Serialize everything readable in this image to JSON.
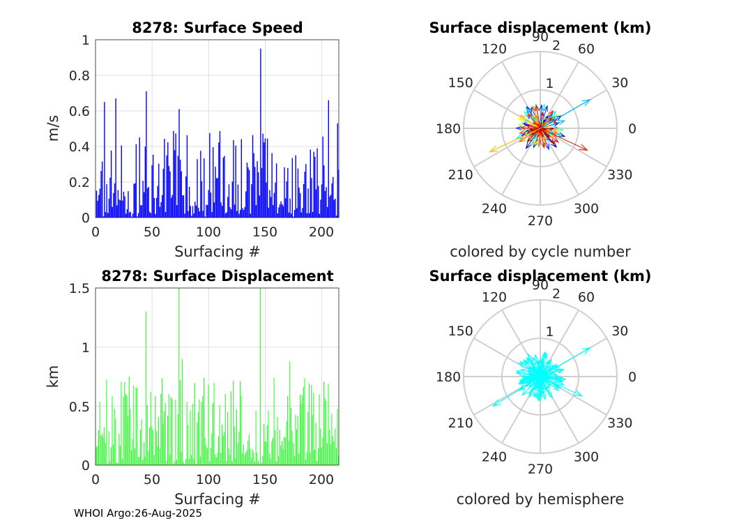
{
  "chart_data": [
    {
      "type": "bar",
      "title": "8278: Surface Speed",
      "xlabel": "Surfacing #",
      "ylabel": "m/s",
      "xlim": [
        0,
        215
      ],
      "ylim": [
        0,
        1
      ],
      "xticks": [
        "0",
        "50",
        "100",
        "150",
        "200"
      ],
      "yticks": [
        "0",
        "0.2",
        "0.4",
        "0.6",
        "0.8",
        "1"
      ],
      "color": "#0000ff",
      "peaks": [
        {
          "x": 8,
          "value": 0.65
        },
        {
          "x": 18,
          "value": 0.67
        },
        {
          "x": 45,
          "value": 0.71
        },
        {
          "x": 74,
          "value": 0.61
        },
        {
          "x": 146,
          "value": 0.95
        },
        {
          "x": 206,
          "value": 0.66
        },
        {
          "x": 214,
          "value": 0.53
        }
      ]
    },
    {
      "type": "bar",
      "title": "8278: Surface Displacement",
      "xlabel": "Surfacing #",
      "ylabel": "km",
      "xlim": [
        0,
        215
      ],
      "ylim": [
        0,
        1.5
      ],
      "xticks": [
        "0",
        "50",
        "100",
        "150",
        "200"
      ],
      "yticks": [
        "0",
        "0.5",
        "1",
        "1.5"
      ],
      "color": "#00ff00",
      "peaks": [
        {
          "x": 45,
          "value": 1.3
        },
        {
          "x": 74,
          "value": 1.5
        },
        {
          "x": 146,
          "value": 1.5
        },
        {
          "x": 77,
          "value": 0.9
        },
        {
          "x": 172,
          "value": 0.88
        },
        {
          "x": 206,
          "value": 0.69
        }
      ]
    },
    {
      "type": "polar-vectors",
      "title": "Surface displacement (km)",
      "caption": "colored by cycle number",
      "rlim": [
        0,
        2
      ],
      "rticks": [
        "1",
        "2"
      ],
      "angle_ticks": [
        "0",
        "30",
        "60",
        "90",
        "120",
        "150",
        "180",
        "210",
        "240",
        "270",
        "300",
        "330"
      ],
      "coloring": "jet colormap by cycle number",
      "highlight_vectors": [
        {
          "angle_deg": 30,
          "r": 1.5,
          "color": "#00bfff"
        },
        {
          "angle_deg": 205,
          "r": 1.45,
          "color": "#ffbf00"
        },
        {
          "angle_deg": 335,
          "r": 1.35,
          "color": "#d03000"
        }
      ]
    },
    {
      "type": "polar-vectors",
      "title": "Surface displacement (km)",
      "caption": "colored by hemisphere",
      "rlim": [
        0,
        2
      ],
      "rticks": [
        "1",
        "2"
      ],
      "angle_ticks": [
        "0",
        "30",
        "60",
        "90",
        "120",
        "150",
        "180",
        "210",
        "240",
        "270",
        "300",
        "330"
      ],
      "color": "#00ffff",
      "highlight_vectors": [
        {
          "angle_deg": 30,
          "r": 1.5
        },
        {
          "angle_deg": 212,
          "r": 1.45
        },
        {
          "angle_deg": 335,
          "r": 1.2
        }
      ]
    }
  ],
  "footer": "WHOI Argo:26-Aug-2025"
}
